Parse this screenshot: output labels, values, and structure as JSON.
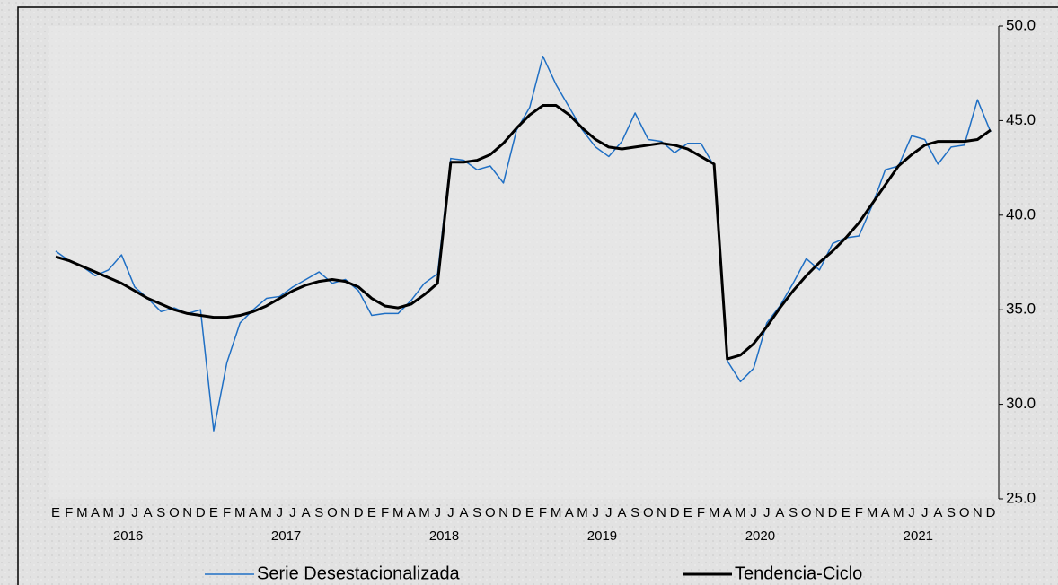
{
  "chart_data": {
    "type": "line",
    "categories": [
      "E",
      "F",
      "M",
      "A",
      "M",
      "J",
      "J",
      "A",
      "S",
      "O",
      "N",
      "D",
      "E",
      "F",
      "M",
      "A",
      "M",
      "J",
      "J",
      "A",
      "S",
      "O",
      "N",
      "D",
      "E",
      "F",
      "M",
      "A",
      "M",
      "J",
      "J",
      "A",
      "S",
      "O",
      "N",
      "D",
      "E",
      "F",
      "M",
      "A",
      "M",
      "J",
      "J",
      "A",
      "S",
      "O",
      "N",
      "D",
      "E",
      "F",
      "M",
      "A",
      "M",
      "J",
      "J",
      "A",
      "S",
      "O",
      "N",
      "D",
      "E",
      "F",
      "M",
      "A",
      "M",
      "J",
      "J",
      "A",
      "S",
      "O",
      "N",
      "D"
    ],
    "year_labels": [
      "2016",
      "2017",
      "2018",
      "2019",
      "2020",
      "2021"
    ],
    "series": [
      {
        "name": "Serie Desestacionalizada",
        "color": "#1f6fc4",
        "width": 1.5,
        "values": [
          38.1,
          37.6,
          37.3,
          36.8,
          37.1,
          37.9,
          36.2,
          35.6,
          34.9,
          35.1,
          34.8,
          35.0,
          28.6,
          32.2,
          34.3,
          35.0,
          35.6,
          35.7,
          36.2,
          36.6,
          37.0,
          36.4,
          36.6,
          36.0,
          34.7,
          34.8,
          34.8,
          35.5,
          36.4,
          36.9,
          43.0,
          42.9,
          42.4,
          42.6,
          41.7,
          44.5,
          45.7,
          48.4,
          46.9,
          45.7,
          44.5,
          43.6,
          43.1,
          43.9,
          45.4,
          44.0,
          43.9,
          43.3,
          43.8,
          43.8,
          42.6,
          32.3,
          31.2,
          31.9,
          34.3,
          35.2,
          36.4,
          37.7,
          37.1,
          38.5,
          38.8,
          38.9,
          40.5,
          42.4,
          42.6,
          44.2,
          44.0,
          42.7,
          43.6,
          43.7,
          46.1,
          44.4
        ]
      },
      {
        "name": "Tendencia-Ciclo",
        "color": "#000000",
        "width": 3,
        "values": [
          37.8,
          37.6,
          37.3,
          37.0,
          36.7,
          36.4,
          36.0,
          35.6,
          35.3,
          35.0,
          34.8,
          34.7,
          34.6,
          34.6,
          34.7,
          34.9,
          35.2,
          35.6,
          36.0,
          36.3,
          36.5,
          36.6,
          36.5,
          36.2,
          35.6,
          35.2,
          35.1,
          35.3,
          35.8,
          36.4,
          42.8,
          42.8,
          42.9,
          43.2,
          43.8,
          44.6,
          45.3,
          45.8,
          45.8,
          45.3,
          44.6,
          44.0,
          43.6,
          43.5,
          43.6,
          43.7,
          43.8,
          43.7,
          43.5,
          43.1,
          42.7,
          32.4,
          32.6,
          33.2,
          34.1,
          35.1,
          36.0,
          36.8,
          37.5,
          38.1,
          38.8,
          39.6,
          40.6,
          41.6,
          42.6,
          43.2,
          43.7,
          43.9,
          43.9,
          43.9,
          44.0,
          44.5
        ]
      }
    ],
    "ylim": [
      25,
      50
    ],
    "yticks": [
      {
        "value": 25,
        "label": "25.0"
      },
      {
        "value": 30,
        "label": "30.0"
      },
      {
        "value": 35,
        "label": "35.0"
      },
      {
        "value": 40,
        "label": "40.0"
      },
      {
        "value": 45,
        "label": "45.0"
      },
      {
        "value": 50,
        "label": "50.0"
      }
    ],
    "legend": "bottom"
  }
}
